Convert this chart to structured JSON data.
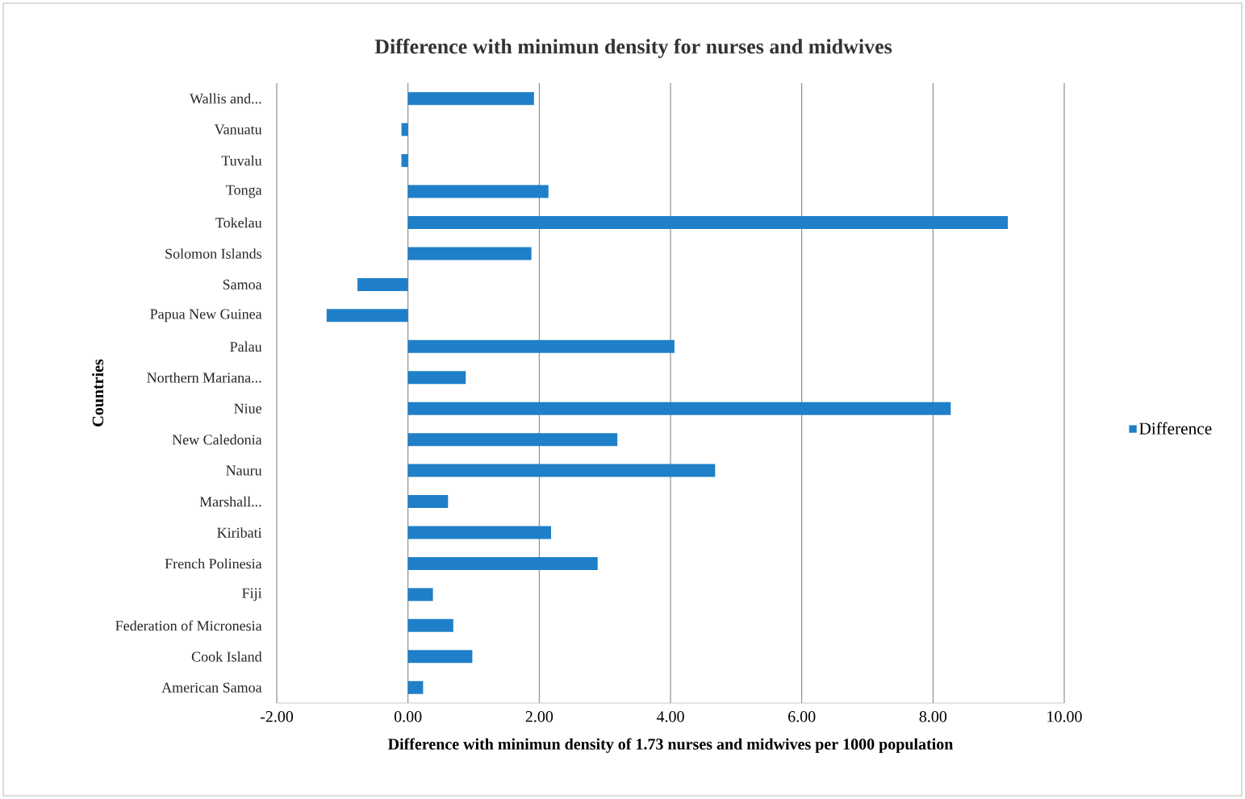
{
  "chart_data": {
    "type": "bar",
    "orientation": "horizontal",
    "title": "Difference with minimun density for nurses and midwives",
    "xlabel": "Difference with minimun density of 1.73 nurses and midwives per 1000 population",
    "ylabel": "Countries",
    "categories": [
      "Wallis and...",
      "Vanuatu",
      "Tuvalu",
      "Tonga",
      "Tokelau",
      "Solomon Islands",
      "Samoa",
      "Papua New Guinea",
      "Palau",
      "Northern Mariana...",
      "Niue",
      "New Caledonia",
      "Nauru",
      "Marshall...",
      "Kiribati",
      "French Polinesia",
      "Fiji",
      "Federation of Micronesia",
      "Cook Island",
      "American Samoa"
    ],
    "series": [
      {
        "name": "Difference",
        "color": "#1f7fc8",
        "values": [
          1.92,
          -0.1,
          -0.1,
          2.14,
          9.14,
          1.88,
          -0.77,
          -1.24,
          4.06,
          0.88,
          8.27,
          3.19,
          4.68,
          0.61,
          2.18,
          2.89,
          0.38,
          0.69,
          0.98,
          0.23
        ]
      }
    ],
    "xlim": [
      -2,
      10
    ],
    "xticks": [
      {
        "value": -2,
        "label": "-2.00"
      },
      {
        "value": 0,
        "label": "0.00"
      },
      {
        "value": 2,
        "label": "2.00"
      },
      {
        "value": 4,
        "label": "4.00"
      },
      {
        "value": 6,
        "label": "6.00"
      },
      {
        "value": 8,
        "label": "8.00"
      },
      {
        "value": 10,
        "label": "10.00"
      }
    ],
    "grid": "x",
    "legend": "right"
  }
}
